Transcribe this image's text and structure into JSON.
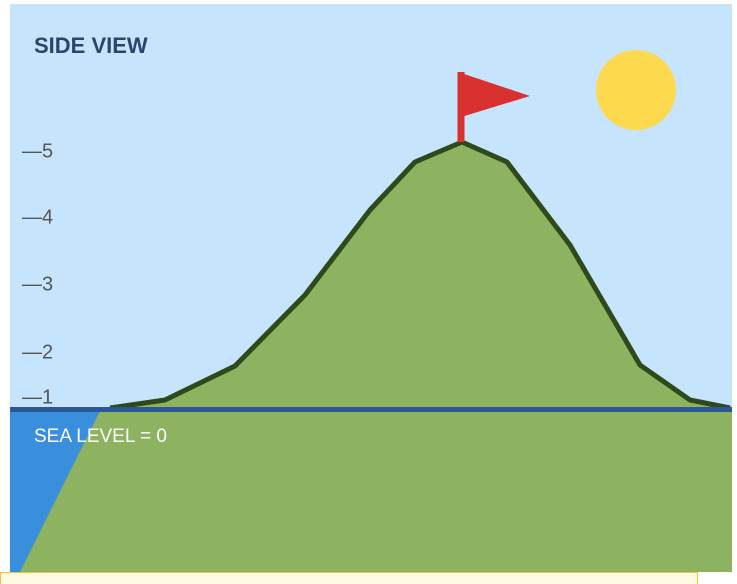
{
  "header": {
    "title": "SIDE VIEW"
  },
  "scale": {
    "labels": [
      "—5",
      "—4",
      "—3",
      "—2",
      "—1"
    ]
  },
  "sea_level": {
    "label": "SEA LEVEL = 0"
  }
}
